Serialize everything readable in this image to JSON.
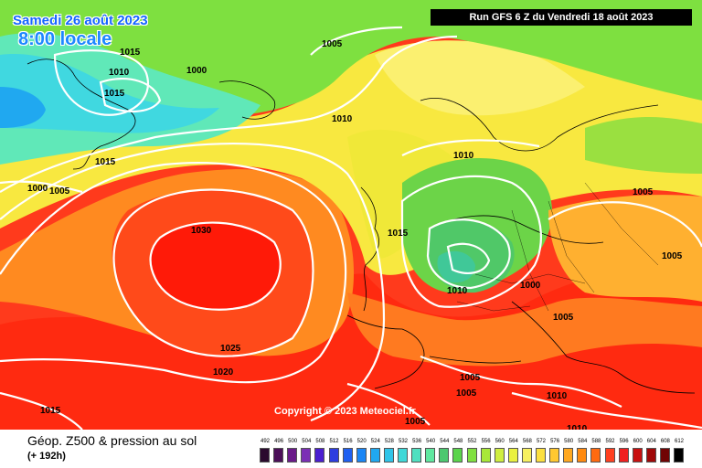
{
  "header": {
    "date": "Samedi 26 août 2023",
    "local_time": "8:00 locale",
    "run_info": "Run GFS 6 Z du Vendredi 18 août 2023"
  },
  "copyright": "Copyright © 2023 Meteociel.fr",
  "footer": {
    "title": "Géop. Z500 & pression au sol",
    "forecast_hour": "(+ 192h)"
  },
  "isobars": [
    {
      "id": "i01",
      "text": "1015"
    },
    {
      "id": "i02",
      "text": "1010"
    },
    {
      "id": "i03",
      "text": "1000"
    },
    {
      "id": "i04",
      "text": "1015"
    },
    {
      "id": "i05",
      "text": "1015"
    },
    {
      "id": "i06",
      "text": "1000"
    },
    {
      "id": "i07",
      "text": "1005"
    },
    {
      "id": "i08",
      "text": "1005"
    },
    {
      "id": "i09",
      "text": "1010"
    },
    {
      "id": "i10",
      "text": "1030"
    },
    {
      "id": "i11",
      "text": "1025"
    },
    {
      "id": "i12",
      "text": "1020"
    },
    {
      "id": "i13",
      "text": "1015"
    },
    {
      "id": "i14",
      "text": "1015"
    },
    {
      "id": "i15",
      "text": "1010"
    },
    {
      "id": "i16",
      "text": "1010"
    },
    {
      "id": "i17",
      "text": "1000"
    },
    {
      "id": "i18",
      "text": "1005"
    },
    {
      "id": "i19",
      "text": "1005"
    },
    {
      "id": "i20",
      "text": "1005"
    },
    {
      "id": "i21",
      "text": "1005"
    },
    {
      "id": "i22",
      "text": "1005"
    },
    {
      "id": "i23",
      "text": "1005"
    },
    {
      "id": "i24",
      "text": "1010"
    },
    {
      "id": "i25",
      "text": "1010"
    }
  ],
  "scale": {
    "labels": [
      "492",
      "496",
      "500",
      "504",
      "508",
      "512",
      "516",
      "520",
      "524",
      "528",
      "532",
      "536",
      "540",
      "544",
      "548",
      "552",
      "556",
      "560",
      "564",
      "568",
      "572",
      "576",
      "580",
      "584",
      "588",
      "592",
      "596",
      "600",
      "604",
      "608",
      "612"
    ],
    "colors": [
      "#2a0a2e",
      "#4b0f58",
      "#6a1a8a",
      "#7b2fb5",
      "#4a1fd0",
      "#2d3de0",
      "#1f5ff0",
      "#1a86f5",
      "#20a8f0",
      "#30c4e8",
      "#40d8d8",
      "#50e0c0",
      "#60e8a0",
      "#4cc870",
      "#5ad44c",
      "#80e040",
      "#a8e838",
      "#d0ee40",
      "#eaf040",
      "#f7f060",
      "#fce040",
      "#ffc830",
      "#ffa820",
      "#ff8a10",
      "#ff6a10",
      "#ff4020",
      "#f02020",
      "#c81010",
      "#a00808",
      "#700404",
      "#000000"
    ]
  }
}
